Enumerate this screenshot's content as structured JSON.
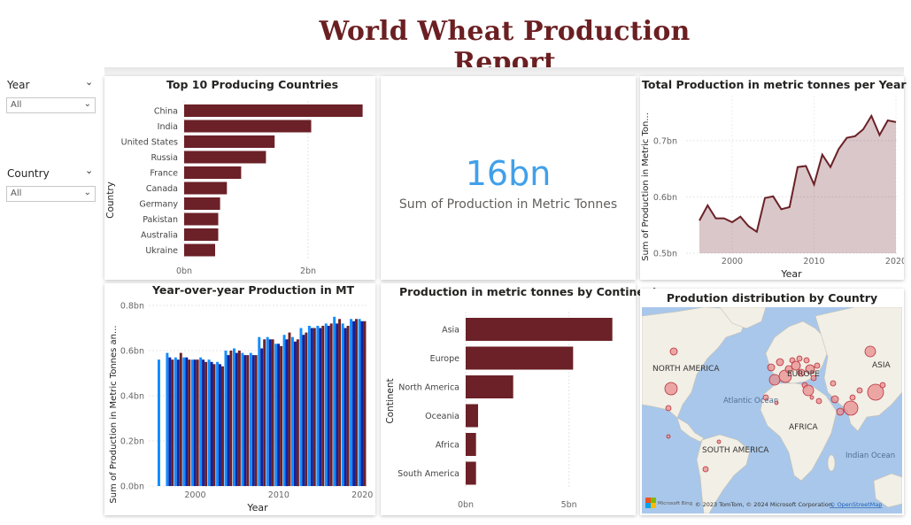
{
  "report_title": "World Wheat Production Report",
  "slicers": [
    {
      "label": "Year",
      "value": "All"
    },
    {
      "label": "Country",
      "value": "All"
    }
  ],
  "kpi": {
    "value": "16bn",
    "label": "Sum of Production in Metric Tonnes"
  },
  "colors": {
    "maroon": "#6b2127",
    "blue": "#118dff",
    "navy": "#12239e",
    "kpi_blue": "#41a0e9",
    "title": "#6b1f22"
  },
  "map": {
    "title": "Prodution distribution by Country",
    "labels": [
      "NORTH AMERICA",
      "EUROPE",
      "ASIA",
      "Atlantic Ocean",
      "AFRICA",
      "SOUTH AMERICA",
      "Indian Ocean"
    ],
    "attribution": "© 2023 TomTom, © 2024 Microsoft Corporation,",
    "attribution_link": "© OpenStreetMap",
    "bing": "Microsoft Bing"
  },
  "chart_data": [
    {
      "id": "top10",
      "type": "bar",
      "orientation": "horizontal",
      "title": "Top 10 Producing Countries",
      "ylabel": "Country",
      "categories": [
        "China",
        "India",
        "United States",
        "Russia",
        "France",
        "Canada",
        "Germany",
        "Pakistan",
        "Australia",
        "Ukraine"
      ],
      "values": [
        2.88,
        2.05,
        1.46,
        1.32,
        0.92,
        0.69,
        0.58,
        0.55,
        0.55,
        0.5
      ],
      "unit": "bn",
      "xticks": [
        "0bn",
        "2bn"
      ],
      "xlim": [
        0,
        3.0
      ],
      "color": "#6b2127"
    },
    {
      "id": "total_line",
      "type": "area",
      "title": "Total Production in metric tonnes per Year",
      "xlabel": "Year",
      "ylabel": "Sum of Production in Metric Ton...",
      "x": [
        1996,
        1997,
        1998,
        1999,
        2000,
        2001,
        2002,
        2003,
        2004,
        2005,
        2006,
        2007,
        2008,
        2009,
        2010,
        2011,
        2012,
        2013,
        2014,
        2015,
        2016,
        2017,
        2018,
        2019,
        2020
      ],
      "values": [
        0.558,
        0.585,
        0.562,
        0.562,
        0.555,
        0.565,
        0.548,
        0.538,
        0.598,
        0.601,
        0.578,
        0.582,
        0.653,
        0.655,
        0.622,
        0.675,
        0.653,
        0.685,
        0.705,
        0.708,
        0.72,
        0.744,
        0.71,
        0.736,
        0.733
      ],
      "xticks": [
        "2000",
        "2010",
        "2020"
      ],
      "yticks": [
        "0.5bn",
        "0.6bn",
        "0.7bn"
      ],
      "ylim": [
        0.5,
        0.78
      ],
      "color": "#6b2127"
    },
    {
      "id": "yoy",
      "type": "bar",
      "title": "Year-over-year Production in MT",
      "xlabel": "Year",
      "ylabel": "Sum of Production in Metric Tonnes an...",
      "x": [
        1996,
        1997,
        1998,
        1999,
        2000,
        2001,
        2002,
        2003,
        2004,
        2005,
        2006,
        2007,
        2008,
        2009,
        2010,
        2011,
        2012,
        2013,
        2014,
        2015,
        2016,
        2017,
        2018,
        2019,
        2020
      ],
      "series": [
        {
          "values": [
            0.56,
            0.59,
            0.57,
            0.57,
            0.56,
            0.57,
            0.56,
            0.55,
            0.6,
            0.61,
            0.59,
            0.59,
            0.66,
            0.66,
            0.63,
            0.67,
            0.66,
            0.7,
            0.71,
            0.71,
            0.72,
            0.75,
            0.72,
            0.74,
            0.74
          ],
          "color": "#118dff"
        },
        {
          "values": [
            0.0,
            0.57,
            0.56,
            0.57,
            0.56,
            0.56,
            0.55,
            0.54,
            0.58,
            0.59,
            0.58,
            0.58,
            0.61,
            0.65,
            0.63,
            0.65,
            0.64,
            0.67,
            0.7,
            0.7,
            0.71,
            0.72,
            0.7,
            0.73,
            0.73
          ],
          "color": "#12239e"
        },
        {
          "values": [
            0.0,
            0.56,
            0.59,
            0.56,
            0.56,
            0.55,
            0.54,
            0.53,
            0.6,
            0.6,
            0.58,
            0.58,
            0.65,
            0.65,
            0.62,
            0.68,
            0.65,
            0.68,
            0.7,
            0.71,
            0.72,
            0.74,
            0.71,
            0.74,
            0.73
          ],
          "color": "#6b2127"
        }
      ],
      "xticks": [
        "2000",
        "2010",
        "2020"
      ],
      "yticks": [
        "0.0bn",
        "0.2bn",
        "0.4bn",
        "0.6bn",
        "0.8bn"
      ],
      "ylim": [
        0,
        0.8
      ]
    },
    {
      "id": "continent",
      "type": "bar",
      "orientation": "horizontal",
      "title": "Production in metric tonnes by Continent",
      "ylabel": "Continent",
      "categories": [
        "Asia",
        "Europe",
        "North America",
        "Oceania",
        "Africa",
        "South America"
      ],
      "values": [
        7.1,
        5.2,
        2.3,
        0.6,
        0.5,
        0.5
      ],
      "xticks": [
        "0bn",
        "5bn"
      ],
      "xlim": [
        0,
        7.5
      ],
      "color": "#6b2127"
    }
  ]
}
